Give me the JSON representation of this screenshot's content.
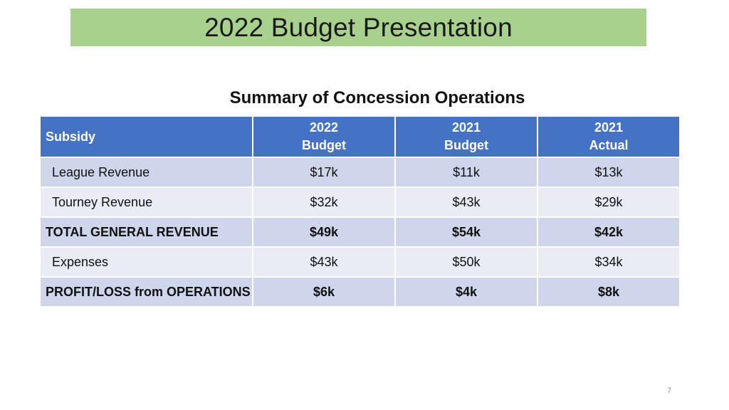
{
  "slide": {
    "title": "2022 Budget Presentation",
    "page_number": "7",
    "colors": {
      "title_band": "#a9d18e",
      "table_header": "#4472c4",
      "row_dark": "#cfd5ea",
      "row_light": "#e9ebf5"
    }
  },
  "table": {
    "heading": "Summary of Concession Operations",
    "header": {
      "label": "Subsidy",
      "columns": [
        {
          "line1": "2022",
          "line2": "Budget"
        },
        {
          "line1": "2021",
          "line2": "Budget"
        },
        {
          "line1": "2021",
          "line2": "Actual"
        }
      ]
    },
    "rows": [
      {
        "label": "League Revenue",
        "values": [
          "$17k",
          "$11k",
          "$13k"
        ]
      },
      {
        "label": "Tourney Revenue",
        "values": [
          "$32k",
          "$43k",
          "$29k"
        ]
      },
      {
        "label": "TOTAL GENERAL REVENUE",
        "values": [
          "$49k",
          "$54k",
          "$42k"
        ]
      },
      {
        "label": "Expenses",
        "values": [
          "$43k",
          "$50k",
          "$34k"
        ]
      },
      {
        "label": "PROFIT/LOSS from OPERATIONS",
        "values": [
          "$6k",
          "$4k",
          "$8k"
        ]
      }
    ]
  }
}
